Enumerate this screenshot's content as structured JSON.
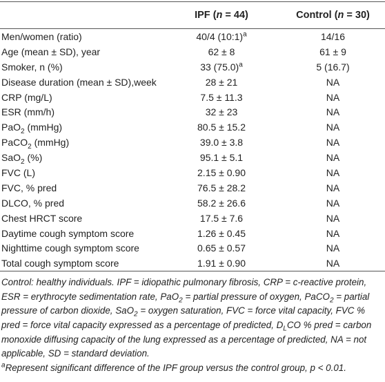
{
  "table": {
    "header": [
      [],
      [
        "IPF (",
        {
          "text": "n",
          "format": "italic"
        },
        " = 44)"
      ],
      [
        "Control (",
        {
          "text": "n",
          "format": "italic"
        },
        " = 30)"
      ]
    ],
    "rows": [
      [
        [
          "Men/women (ratio)"
        ],
        [
          "40/4 (10:1)",
          {
            "text": "a",
            "format": "sup"
          }
        ],
        [
          "14/16"
        ]
      ],
      [
        [
          "Age (mean ± SD), year"
        ],
        [
          "62 ± 8"
        ],
        [
          "61 ± 9"
        ]
      ],
      [
        [
          "Smoker, n (%)"
        ],
        [
          "33 (75.0)",
          {
            "text": "a",
            "format": "sup"
          }
        ],
        [
          "5 (16.7)"
        ]
      ],
      [
        [
          "Disease duration (mean ± SD),week"
        ],
        [
          "28 ± 21"
        ],
        [
          "NA"
        ]
      ],
      [
        [
          "CRP (mg/L)"
        ],
        [
          "7.5 ± 11.3"
        ],
        [
          "NA"
        ]
      ],
      [
        [
          "ESR (mm/h)"
        ],
        [
          "32 ± 23"
        ],
        [
          "NA"
        ]
      ],
      [
        [
          "PaO",
          {
            "text": "2",
            "format": "sub"
          },
          " (mmHg)"
        ],
        [
          "80.5 ± 15.2"
        ],
        [
          "NA"
        ]
      ],
      [
        [
          "PaCO",
          {
            "text": "2",
            "format": "sub"
          },
          " (mmHg)"
        ],
        [
          "39.0 ± 3.8"
        ],
        [
          "NA"
        ]
      ],
      [
        [
          "SaO",
          {
            "text": "2",
            "format": "sub"
          },
          " (%)"
        ],
        [
          "95.1 ± 5.1"
        ],
        [
          "NA"
        ]
      ],
      [
        [
          "FVC (L)"
        ],
        [
          "2.15 ± 0.90"
        ],
        [
          "NA"
        ]
      ],
      [
        [
          "FVC, % pred"
        ],
        [
          "76.5 ± 28.2"
        ],
        [
          "NA"
        ]
      ],
      [
        [
          "DLCO, % pred"
        ],
        [
          "58.2 ± 26.6"
        ],
        [
          "NA"
        ]
      ],
      [
        [
          "Chest HRCT score"
        ],
        [
          "17.5 ± 7.6"
        ],
        [
          "NA"
        ]
      ],
      [
        [
          "Daytime cough symptom score"
        ],
        [
          "1.26 ± 0.45"
        ],
        [
          "NA"
        ]
      ],
      [
        [
          "Nighttime cough symptom score"
        ],
        [
          "0.65 ± 0.57"
        ],
        [
          "NA"
        ]
      ],
      [
        [
          "Total cough symptom score"
        ],
        [
          "1.91 ± 0.90"
        ],
        [
          "NA"
        ]
      ]
    ]
  },
  "notes": [
    [
      "Control: healthy individuals. IPF = idiopathic pulmonary fibrosis, CRP = c-reactive protein, ESR = erythrocyte sedimentation rate, PaO",
      {
        "text": "2",
        "format": "sub"
      },
      " = partial pressure of oxygen, PaCO",
      {
        "text": "2",
        "format": "sub"
      },
      " = partial pressure of carbon dioxide, SaO",
      {
        "text": "2",
        "format": "sub"
      },
      " = oxygen saturation, FVC = force vital capacity, FVC % pred = force vital capacity expressed as a percentage of predicted, D",
      {
        "text": "L",
        "format": "sub"
      },
      "CO % pred = carbon monoxide diffusing capacity of the lung expressed as a percentage of predicted, NA = not applicable, SD = standard deviation."
    ],
    [
      {
        "text": "a",
        "format": "sup"
      },
      "Represent significant difference of the IPF group versus the control group, p < 0.01."
    ]
  ]
}
